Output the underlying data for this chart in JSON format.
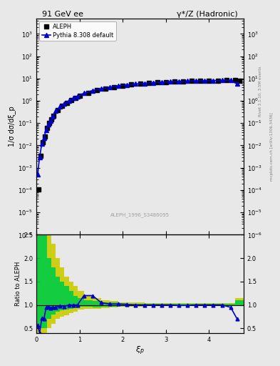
{
  "title_left": "91 GeV ee",
  "title_right": "γ*/Z (Hadronic)",
  "ylabel_main": "1/σ dσ/dξ_p",
  "ylabel_ratio": "Ratio to ALEPH",
  "xlabel": "ξ_p",
  "watermark": "ALEPH_1996_S3486095",
  "right_label": "Rivet 3.1.10, 3.5M events",
  "right_label2": "mcplots.cern.ch [arXiv:1306.3436]",
  "ylim_main": [
    1e-06,
    5000
  ],
  "ylim_ratio": [
    0.4,
    2.5
  ],
  "xlim": [
    0.0,
    4.8
  ],
  "legend_entries": [
    "ALEPH",
    "Pythia 8.308 default"
  ],
  "aleph_xi": [
    0.05,
    0.1,
    0.15,
    0.2,
    0.25,
    0.3,
    0.35,
    0.4,
    0.5,
    0.6,
    0.7,
    0.8,
    0.9,
    1.0,
    1.2,
    1.4,
    1.6,
    1.8,
    2.0,
    2.2,
    2.4,
    2.6,
    2.8,
    3.0,
    3.2,
    3.4,
    3.6,
    3.8,
    4.0,
    4.2,
    4.4,
    4.6,
    4.7
  ],
  "aleph_y": [
    0.00011,
    0.0035,
    0.014,
    0.025,
    0.06,
    0.1,
    0.15,
    0.22,
    0.38,
    0.58,
    0.8,
    1.05,
    1.35,
    1.65,
    2.3,
    3.0,
    3.6,
    4.2,
    4.8,
    5.3,
    5.8,
    6.2,
    6.6,
    7.0,
    7.3,
    7.6,
    7.8,
    7.95,
    8.1,
    8.2,
    8.3,
    8.35,
    8.0
  ],
  "pythia_xi": [
    0.025,
    0.075,
    0.125,
    0.175,
    0.225,
    0.275,
    0.325,
    0.375,
    0.45,
    0.55,
    0.65,
    0.75,
    0.85,
    0.95,
    1.1,
    1.3,
    1.5,
    1.7,
    1.9,
    2.1,
    2.3,
    2.5,
    2.7,
    2.9,
    3.1,
    3.3,
    3.5,
    3.7,
    3.9,
    4.1,
    4.3,
    4.5,
    4.65
  ],
  "pythia_y": [
    0.0005,
    0.003,
    0.012,
    0.022,
    0.05,
    0.09,
    0.13,
    0.2,
    0.35,
    0.55,
    0.76,
    1.0,
    1.3,
    1.6,
    2.2,
    2.9,
    3.5,
    4.1,
    4.7,
    5.2,
    5.7,
    6.1,
    6.5,
    6.9,
    7.2,
    7.5,
    7.7,
    7.9,
    8.05,
    8.15,
    8.25,
    8.3,
    5.7
  ],
  "ratio_xi": [
    0.025,
    0.075,
    0.125,
    0.175,
    0.225,
    0.275,
    0.325,
    0.375,
    0.45,
    0.55,
    0.65,
    0.75,
    0.85,
    0.95,
    1.1,
    1.3,
    1.5,
    1.7,
    1.9,
    2.1,
    2.3,
    2.5,
    2.7,
    2.9,
    3.1,
    3.3,
    3.5,
    3.7,
    3.9,
    4.1,
    4.3,
    4.5,
    4.65
  ],
  "ratio_y": [
    0.57,
    0.4,
    0.72,
    0.7,
    0.95,
    0.96,
    0.93,
    0.95,
    0.95,
    0.98,
    0.97,
    1.0,
    1.0,
    1.0,
    1.2,
    1.2,
    1.05,
    1.02,
    1.02,
    1.01,
    1.0,
    1.0,
    1.0,
    1.0,
    1.0,
    0.99,
    0.99,
    1.0,
    1.0,
    1.0,
    1.0,
    0.95,
    0.7
  ],
  "band_xi_edges": [
    0.0,
    0.05,
    0.15,
    0.25,
    0.35,
    0.45,
    0.55,
    0.65,
    0.75,
    0.85,
    0.95,
    1.1,
    1.3,
    1.5,
    1.7,
    1.9,
    2.1,
    2.3,
    2.5,
    2.7,
    2.9,
    3.1,
    3.3,
    3.5,
    3.7,
    3.9,
    4.1,
    4.3,
    4.5,
    4.6,
    4.8
  ],
  "band_green_lo": [
    0.5,
    0.5,
    0.5,
    0.7,
    0.8,
    0.85,
    0.88,
    0.9,
    0.92,
    0.94,
    0.96,
    0.96,
    0.95,
    0.96,
    0.97,
    0.98,
    0.98,
    0.98,
    0.99,
    0.99,
    0.99,
    0.99,
    0.99,
    0.99,
    0.99,
    0.99,
    0.99,
    0.99,
    0.99,
    0.99,
    0.99
  ],
  "band_green_hi": [
    2.5,
    2.5,
    2.5,
    2.0,
    1.8,
    1.6,
    1.5,
    1.4,
    1.3,
    1.2,
    1.15,
    1.1,
    1.08,
    1.06,
    1.05,
    1.04,
    1.03,
    1.03,
    1.02,
    1.02,
    1.02,
    1.02,
    1.02,
    1.02,
    1.02,
    1.02,
    1.02,
    1.02,
    1.02,
    1.1,
    1.2
  ],
  "band_yellow_lo": [
    0.4,
    0.35,
    0.35,
    0.5,
    0.6,
    0.7,
    0.75,
    0.78,
    0.82,
    0.86,
    0.9,
    0.92,
    0.92,
    0.94,
    0.95,
    0.96,
    0.97,
    0.97,
    0.98,
    0.98,
    0.98,
    0.98,
    0.98,
    0.98,
    0.98,
    0.98,
    0.98,
    0.98,
    0.98,
    0.98,
    0.98
  ],
  "band_yellow_hi": [
    2.5,
    2.5,
    2.5,
    2.5,
    2.3,
    2.0,
    1.8,
    1.6,
    1.5,
    1.4,
    1.3,
    1.2,
    1.15,
    1.1,
    1.08,
    1.06,
    1.05,
    1.05,
    1.04,
    1.04,
    1.04,
    1.04,
    1.04,
    1.04,
    1.04,
    1.04,
    1.04,
    1.04,
    1.04,
    1.15,
    1.3
  ],
  "color_aleph": "#000000",
  "color_pythia": "#0000cc",
  "color_green_band": "#00cc44",
  "color_yellow_band": "#cccc00",
  "bg_color": "#e8e8e8"
}
